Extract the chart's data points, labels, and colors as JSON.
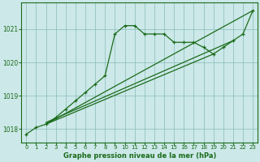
{
  "title": "Graphe pression niveau de la mer (hPa)",
  "bg_color": "#cce8e8",
  "line_color": "#1a6b1a",
  "grid_color": "#88bbbb",
  "xlim": [
    -0.5,
    23.5
  ],
  "ylim": [
    1017.6,
    1021.8
  ],
  "yticks": [
    1018,
    1019,
    1020,
    1021
  ],
  "xticks": [
    0,
    1,
    2,
    3,
    4,
    5,
    6,
    7,
    8,
    9,
    10,
    11,
    12,
    13,
    14,
    15,
    16,
    17,
    18,
    19,
    20,
    21,
    22,
    23
  ],
  "wavy_x": [
    0,
    1,
    2,
    3,
    4,
    5,
    6,
    7,
    8,
    9,
    10,
    11,
    12,
    13,
    14,
    15,
    16,
    17,
    18,
    19,
    20,
    21,
    22,
    23
  ],
  "wavy_y": [
    1017.85,
    1018.05,
    1018.15,
    1018.35,
    1018.6,
    1018.85,
    1019.1,
    1019.35,
    1019.6,
    1020.85,
    1021.1,
    1021.1,
    1020.85,
    1020.85,
    1020.85,
    1020.6,
    1020.6,
    1020.6,
    1020.45,
    1020.25,
    1020.45,
    1020.65,
    1020.85,
    1021.55
  ],
  "line1_x": [
    2,
    23
  ],
  "line1_y": [
    1018.15,
    1021.55
  ],
  "line2_x": [
    2,
    19
  ],
  "line2_y": [
    1018.15,
    1020.25
  ],
  "line3_x": [
    2,
    21
  ],
  "line3_y": [
    1018.2,
    1020.65
  ]
}
